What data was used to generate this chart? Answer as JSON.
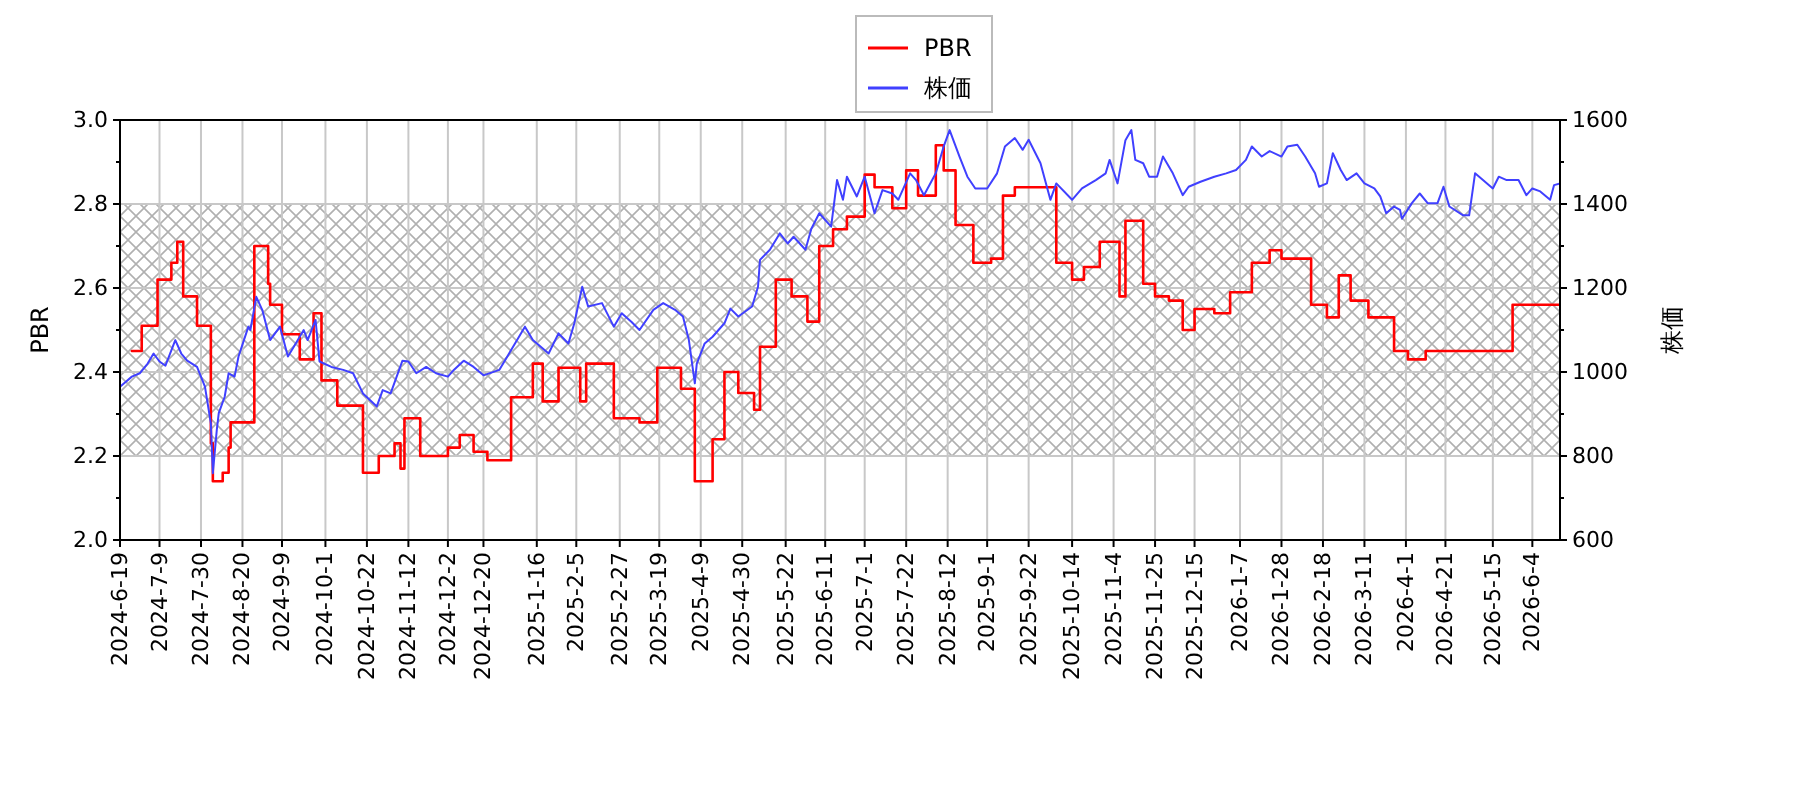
{
  "chart_data": {
    "type": "line",
    "ylabel": "PBR",
    "y2label": "株価",
    "xlim": [
      "2024-06-19",
      "2026-06-18"
    ],
    "xticks": [
      {
        "value": "2024-06-19",
        "label": "2024-6-19"
      },
      {
        "value": "2024-07-09",
        "label": "2024-7-9"
      },
      {
        "value": "2024-07-30",
        "label": "2024-7-30"
      },
      {
        "value": "2024-08-20",
        "label": "2024-8-20"
      },
      {
        "value": "2024-09-09",
        "label": "2024-9-9"
      },
      {
        "value": "2024-10-01",
        "label": "2024-10-1"
      },
      {
        "value": "2024-10-22",
        "label": "2024-10-22"
      },
      {
        "value": "2024-11-12",
        "label": "2024-11-12"
      },
      {
        "value": "2024-12-02",
        "label": "2024-12-2"
      },
      {
        "value": "2024-12-20",
        "label": "2024-12-20"
      },
      {
        "value": "2025-01-16",
        "label": "2025-1-16"
      },
      {
        "value": "2025-02-05",
        "label": "2025-2-5"
      },
      {
        "value": "2025-02-27",
        "label": "2025-2-27"
      },
      {
        "value": "2025-03-19",
        "label": "2025-3-19"
      },
      {
        "value": "2025-04-09",
        "label": "2025-4-9"
      },
      {
        "value": "2025-04-30",
        "label": "2025-4-30"
      },
      {
        "value": "2025-05-22",
        "label": "2025-5-22"
      },
      {
        "value": "2025-06-11",
        "label": "2025-6-11"
      },
      {
        "value": "2025-07-01",
        "label": "2025-7-1"
      },
      {
        "value": "2025-07-22",
        "label": "2025-7-22"
      },
      {
        "value": "2025-08-12",
        "label": "2025-8-12"
      },
      {
        "value": "2025-09-01",
        "label": "2025-9-1"
      },
      {
        "value": "2025-09-22",
        "label": "2025-9-22"
      },
      {
        "value": "2025-10-14",
        "label": "2025-10-14"
      },
      {
        "value": "2025-11-04",
        "label": "2025-11-4"
      },
      {
        "value": "2025-11-25",
        "label": "2025-11-25"
      },
      {
        "value": "2025-12-15",
        "label": "2025-12-15"
      },
      {
        "value": "2026-01-07",
        "label": "2026-1-7"
      },
      {
        "value": "2026-01-28",
        "label": "2026-1-28"
      },
      {
        "value": "2026-02-18",
        "label": "2026-2-18"
      },
      {
        "value": "2026-03-11",
        "label": "2026-3-11"
      },
      {
        "value": "2026-04-01",
        "label": "2026-4-1"
      },
      {
        "value": "2026-04-21",
        "label": "2026-4-21"
      },
      {
        "value": "2026-05-15",
        "label": "2026-5-15"
      },
      {
        "value": "2026-06-04",
        "label": "2026-6-4"
      }
    ],
    "ylim": [
      2.0,
      3.0
    ],
    "yticks": [
      {
        "value": 2.0,
        "label": "2.0"
      },
      {
        "value": 2.1,
        "label": null
      },
      2.2,
      {
        "value": 2.3,
        "label": null
      },
      2.4,
      {
        "value": 2.5,
        "label": null
      },
      2.6,
      {
        "value": 2.7,
        "label": null
      },
      2.8,
      {
        "value": 2.9,
        "label": null
      },
      {
        "value": 3.0,
        "label": "3.0"
      }
    ],
    "y2lim": [
      600,
      1600
    ],
    "y2ticks": [
      600,
      {
        "value": 700,
        "label": null
      },
      800,
      {
        "value": 900,
        "label": null
      },
      1000,
      {
        "value": 1100,
        "label": null
      },
      1200,
      {
        "value": 1300,
        "label": null
      },
      1400,
      {
        "value": 1500,
        "label": null
      },
      1600
    ],
    "grid": true,
    "legend": "top",
    "bands": [
      {
        "axis": "y",
        "from": 2.2,
        "to": 2.8,
        "color": "#b0b0b0"
      }
    ],
    "series": [
      {
        "name": "PBR",
        "type": "step",
        "color": "#ff0000",
        "x": [
          "2024-06-25",
          "2024-06-30",
          "2024-07-08",
          "2024-07-15",
          "2024-07-18",
          "2024-07-21",
          "2024-07-28",
          "2024-08-04",
          "2024-08-05",
          "2024-08-10",
          "2024-08-13",
          "2024-08-14",
          "2024-08-26",
          "2024-09-02",
          "2024-09-03",
          "2024-09-09",
          "2024-09-18",
          "2024-09-25",
          "2024-09-29",
          "2024-10-07",
          "2024-10-20",
          "2024-10-28",
          "2024-11-05",
          "2024-11-08",
          "2024-11-10",
          "2024-11-18",
          "2024-12-02",
          "2024-12-08",
          "2024-12-15",
          "2024-12-22",
          "2025-01-03",
          "2025-01-14",
          "2025-01-19",
          "2025-01-27",
          "2025-02-07",
          "2025-02-10",
          "2025-02-24",
          "2025-03-09",
          "2025-03-18",
          "2025-03-30",
          "2025-04-06",
          "2025-04-15",
          "2025-04-21",
          "2025-04-28",
          "2025-05-06",
          "2025-05-09",
          "2025-05-17",
          "2025-05-25",
          "2025-06-02",
          "2025-06-08",
          "2025-06-15",
          "2025-06-22",
          "2025-07-01",
          "2025-07-06",
          "2025-07-15",
          "2025-07-22",
          "2025-07-28",
          "2025-08-06",
          "2025-08-10",
          "2025-08-16",
          "2025-08-25",
          "2025-09-03",
          "2025-09-09",
          "2025-09-15",
          "2025-10-06",
          "2025-10-14",
          "2025-10-20",
          "2025-10-28",
          "2025-11-07",
          "2025-11-10",
          "2025-11-19",
          "2025-11-25",
          "2025-12-02",
          "2025-12-09",
          "2025-12-15",
          "2025-12-25",
          "2026-01-02",
          "2026-01-13",
          "2026-01-22",
          "2026-01-28",
          "2026-02-12",
          "2026-02-20",
          "2026-02-26",
          "2026-03-04",
          "2026-03-13",
          "2026-03-26",
          "2026-04-02",
          "2026-04-11",
          "2026-05-25",
          "2026-06-18"
        ],
        "values": [
          2.45,
          2.51,
          2.62,
          2.66,
          2.71,
          2.58,
          2.51,
          2.23,
          2.14,
          2.16,
          2.22,
          2.28,
          2.7,
          2.61,
          2.56,
          2.49,
          2.43,
          2.54,
          2.38,
          2.32,
          2.16,
          2.2,
          2.23,
          2.17,
          2.29,
          2.2,
          2.22,
          2.25,
          2.21,
          2.19,
          2.34,
          2.42,
          2.33,
          2.41,
          2.33,
          2.42,
          2.29,
          2.28,
          2.41,
          2.36,
          2.14,
          2.24,
          2.4,
          2.35,
          2.31,
          2.46,
          2.62,
          2.58,
          2.52,
          2.7,
          2.74,
          2.77,
          2.87,
          2.84,
          2.79,
          2.88,
          2.82,
          2.94,
          2.88,
          2.75,
          2.66,
          2.67,
          2.82,
          2.84,
          2.66,
          2.62,
          2.65,
          2.71,
          2.58,
          2.76,
          2.61,
          2.58,
          2.57,
          2.5,
          2.55,
          2.54,
          2.59,
          2.66,
          2.69,
          2.67,
          2.56,
          2.53,
          2.63,
          2.57,
          2.53,
          2.45,
          2.43,
          2.45,
          2.56,
          2.56
        ]
      },
      {
        "name": "株価",
        "axis": "y2",
        "color": "#4040ff",
        "x": [
          "2024-06-19",
          "2024-06-25",
          "2024-06-29",
          "2024-07-03",
          "2024-07-06",
          "2024-07-09",
          "2024-07-12",
          "2024-07-17",
          "2024-07-20",
          "2024-07-23",
          "2024-07-28",
          "2024-08-01",
          "2024-08-04",
          "2024-08-05",
          "2024-08-07",
          "2024-08-08",
          "2024-08-11",
          "2024-08-13",
          "2024-08-16",
          "2024-08-18",
          "2024-08-23",
          "2024-08-24",
          "2024-08-27",
          "2024-08-30",
          "2024-09-03",
          "2024-09-08",
          "2024-09-12",
          "2024-09-15",
          "2024-09-20",
          "2024-09-22",
          "2024-09-26",
          "2024-09-28",
          "2024-10-04",
          "2024-10-10",
          "2024-10-15",
          "2024-10-20",
          "2024-10-27",
          "2024-10-30",
          "2024-11-03",
          "2024-11-09",
          "2024-11-12",
          "2024-11-16",
          "2024-11-21",
          "2024-11-26",
          "2024-12-02",
          "2024-12-05",
          "2024-12-10",
          "2024-12-15",
          "2024-12-20",
          "2024-12-28",
          "2025-01-04",
          "2025-01-10",
          "2025-01-14",
          "2025-01-22",
          "2025-01-27",
          "2025-02-01",
          "2025-02-04",
          "2025-02-08",
          "2025-02-11",
          "2025-02-18",
          "2025-02-24",
          "2025-02-28",
          "2025-03-05",
          "2025-03-09",
          "2025-03-16",
          "2025-03-21",
          "2025-03-27",
          "2025-03-31",
          "2025-04-03",
          "2025-04-06",
          "2025-04-07",
          "2025-04-11",
          "2025-04-15",
          "2025-04-21",
          "2025-04-24",
          "2025-04-28",
          "2025-05-05",
          "2025-05-08",
          "2025-05-09",
          "2025-05-14",
          "2025-05-19",
          "2025-05-23",
          "2025-05-26",
          "2025-06-01",
          "2025-06-04",
          "2025-06-08",
          "2025-06-14",
          "2025-06-17",
          "2025-06-20",
          "2025-06-22",
          "2025-06-27",
          "2025-07-01",
          "2025-07-06",
          "2025-07-10",
          "2025-07-15",
          "2025-07-18",
          "2025-07-24",
          "2025-07-27",
          "2025-07-31",
          "2025-08-06",
          "2025-08-10",
          "2025-08-13",
          "2025-08-18",
          "2025-08-22",
          "2025-08-26",
          "2025-09-01",
          "2025-09-06",
          "2025-09-10",
          "2025-09-15",
          "2025-09-19",
          "2025-09-22",
          "2025-09-28",
          "2025-10-03",
          "2025-10-06",
          "2025-10-14",
          "2025-10-19",
          "2025-10-26",
          "2025-10-31",
          "2025-11-02",
          "2025-11-06",
          "2025-11-10",
          "2025-11-13",
          "2025-11-15",
          "2025-11-19",
          "2025-11-22",
          "2025-11-26",
          "2025-11-29",
          "2025-12-04",
          "2025-12-09",
          "2025-12-12",
          "2025-12-18",
          "2025-12-25",
          "2025-12-31",
          "2026-01-05",
          "2026-01-10",
          "2026-01-13",
          "2026-01-18",
          "2026-01-22",
          "2026-01-28",
          "2026-01-31",
          "2026-02-05",
          "2026-02-09",
          "2026-02-14",
          "2026-02-16",
          "2026-02-20",
          "2026-02-23",
          "2026-02-27",
          "2026-03-02",
          "2026-03-07",
          "2026-03-11",
          "2026-03-16",
          "2026-03-19",
          "2026-03-22",
          "2026-03-26",
          "2026-03-29",
          "2026-03-30",
          "2026-04-04",
          "2026-04-08",
          "2026-04-12",
          "2026-04-17",
          "2026-04-20",
          "2026-04-23",
          "2026-04-30",
          "2026-05-03",
          "2026-05-06",
          "2026-05-10",
          "2026-05-15",
          "2026-05-18",
          "2026-05-22",
          "2026-05-28",
          "2026-06-01",
          "2026-06-04",
          "2026-06-08",
          "2026-06-13",
          "2026-06-15",
          "2026-06-18"
        ],
        "values": [
          965,
          989,
          997,
          1020,
          1044,
          1025,
          1015,
          1076,
          1044,
          1027,
          1012,
          965,
          878,
          759,
          862,
          902,
          941,
          997,
          989,
          1037,
          1108,
          1100,
          1179,
          1148,
          1076,
          1108,
          1037,
          1060,
          1100,
          1076,
          1124,
          1025,
          1012,
          1005,
          997,
          949,
          918,
          957,
          949,
          1027,
          1025,
          997,
          1012,
          997,
          989,
          1005,
          1027,
          1012,
          992,
          1005,
          1060,
          1108,
          1076,
          1044,
          1092,
          1068,
          1116,
          1203,
          1156,
          1164,
          1108,
          1140,
          1119,
          1100,
          1148,
          1164,
          1148,
          1132,
          1076,
          973,
          1020,
          1068,
          1084,
          1116,
          1151,
          1132,
          1156,
          1203,
          1267,
          1291,
          1330,
          1306,
          1322,
          1291,
          1341,
          1378,
          1346,
          1457,
          1410,
          1465,
          1418,
          1465,
          1378,
          1433,
          1425,
          1410,
          1473,
          1457,
          1421,
          1473,
          1537,
          1576,
          1513,
          1465,
          1437,
          1437,
          1473,
          1537,
          1557,
          1529,
          1553,
          1497,
          1410,
          1449,
          1410,
          1437,
          1457,
          1473,
          1505,
          1449,
          1552,
          1576,
          1505,
          1497,
          1465,
          1465,
          1513,
          1473,
          1421,
          1441,
          1453,
          1465,
          1473,
          1481,
          1505,
          1537,
          1513,
          1526,
          1513,
          1537,
          1541,
          1513,
          1473,
          1441,
          1449,
          1521,
          1481,
          1457,
          1473,
          1449,
          1437,
          1418,
          1378,
          1394,
          1386,
          1365,
          1402,
          1425,
          1402,
          1402,
          1441,
          1394,
          1373,
          1373,
          1473,
          1457,
          1437,
          1465,
          1457,
          1457,
          1421,
          1437,
          1430,
          1410,
          1445,
          1449
        ]
      }
    ]
  }
}
